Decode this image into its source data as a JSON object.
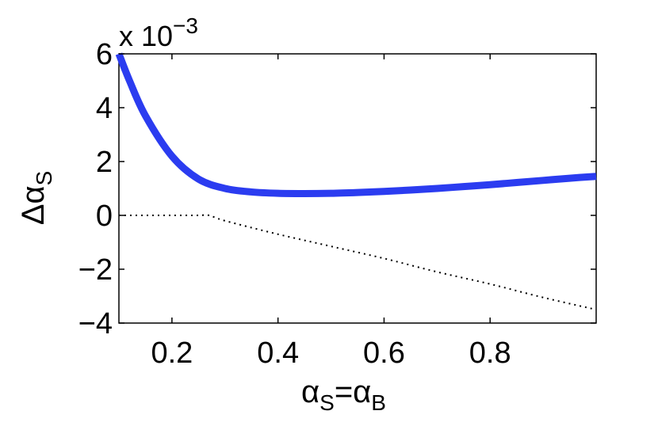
{
  "chart_data": {
    "type": "line",
    "xlabel": {
      "main": "α",
      "sub": "S",
      "eq": "=α",
      "sub2": "B"
    },
    "ylabel": {
      "main": "Δα",
      "sub": "S"
    },
    "exponent_label": {
      "base": "x 10",
      "power": "−3"
    },
    "xlim": [
      0.1,
      1.0
    ],
    "ylim": [
      -4,
      6
    ],
    "xticks": [
      0.2,
      0.4,
      0.6,
      0.8
    ],
    "xtick_labels": [
      "0.2",
      "0.4",
      "0.6",
      "0.8"
    ],
    "yticks": [
      -4,
      -2,
      0,
      2,
      4,
      6
    ],
    "ytick_labels": [
      "−4",
      "−2",
      "0",
      "2",
      "4",
      "6"
    ],
    "grid": false,
    "series": [
      {
        "style": "solid",
        "color": "#2b3cf0",
        "x": [
          0.1,
          0.12,
          0.15,
          0.2,
          0.25,
          0.3,
          0.35,
          0.4,
          0.45,
          0.5,
          0.55,
          0.6,
          0.65,
          0.7,
          0.75,
          0.8,
          0.85,
          0.9,
          0.95,
          1.0
        ],
        "y": [
          6.0,
          5.0,
          3.7,
          2.2,
          1.35,
          1.0,
          0.87,
          0.82,
          0.81,
          0.82,
          0.85,
          0.89,
          0.94,
          1.0,
          1.07,
          1.14,
          1.22,
          1.3,
          1.38,
          1.45
        ]
      },
      {
        "style": "dotted",
        "color": "#000000",
        "x": [
          0.1,
          0.15,
          0.2,
          0.25,
          0.27,
          0.3,
          0.4,
          0.5,
          0.6,
          0.7,
          0.8,
          0.9,
          1.0
        ],
        "y": [
          0.0,
          0.0,
          0.0,
          0.0,
          0.0,
          -0.2,
          -0.7,
          -1.15,
          -1.6,
          -2.1,
          -2.55,
          -3.05,
          -3.5
        ]
      }
    ]
  }
}
